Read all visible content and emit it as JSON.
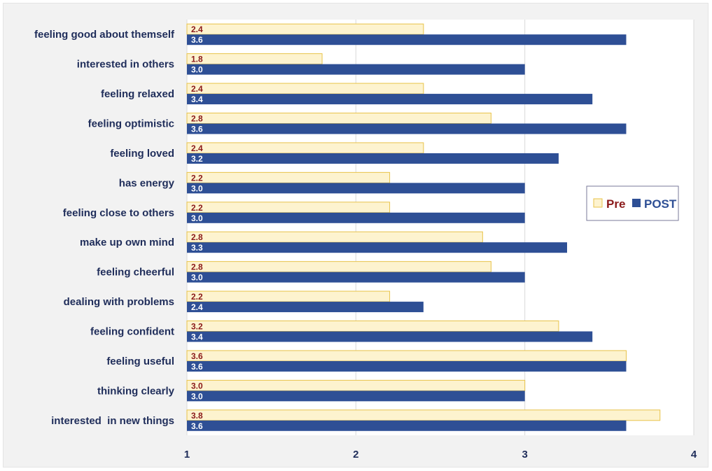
{
  "colors": {
    "pre_fill": "#fdf3cf",
    "pre_stroke": "#e8c34a",
    "post_fill": "#2e4f95",
    "pre_text": "#8b1a1a",
    "label_text": "#1f2d5a",
    "plot_bg": "#ffffff",
    "frame_bg": "#f2f2f2",
    "grid": "#d9d9d9"
  },
  "chart_data": {
    "type": "bar",
    "orientation": "horizontal",
    "title": "",
    "xlabel": "",
    "ylabel": "",
    "xlim": [
      1,
      4
    ],
    "x_ticks": [
      "1",
      "2",
      "3",
      "4"
    ],
    "grid": true,
    "legend_position": "right",
    "categories": [
      "feeling good about themself",
      "interested in others",
      "feeling relaxed",
      "feeling optimistic",
      "feeling loved",
      "has energy",
      "feeling close to others",
      "make up own mind",
      "feeling cheerful",
      "dealing with problems",
      "feeling confident",
      "feeling useful",
      "thinking clearly",
      "interested  in new things"
    ],
    "series": [
      {
        "name": "Pre",
        "values": [
          2.4,
          1.8,
          2.4,
          2.8,
          2.4,
          2.2,
          2.2,
          2.75,
          2.8,
          2.2,
          3.2,
          3.6,
          3.0,
          3.8
        ],
        "labels": [
          "2.4",
          "1.8",
          "2.4",
          "2.8",
          "2.4",
          "2.2",
          "2.2",
          "2.8",
          "2.8",
          "2.2",
          "3.2",
          "3.6",
          "3.0",
          "3.8"
        ]
      },
      {
        "name": "POST",
        "values": [
          3.6,
          3.0,
          3.4,
          3.6,
          3.2,
          3.0,
          3.0,
          3.25,
          3.0,
          2.4,
          3.4,
          3.6,
          3.0,
          3.6
        ],
        "labels": [
          "3.6",
          "3.0",
          "3.4",
          "3.6",
          "3.2",
          "3.0",
          "3.0",
          "3.3",
          "3.0",
          "2.4",
          "3.4",
          "3.6",
          "3.0",
          "3.6"
        ]
      }
    ]
  }
}
